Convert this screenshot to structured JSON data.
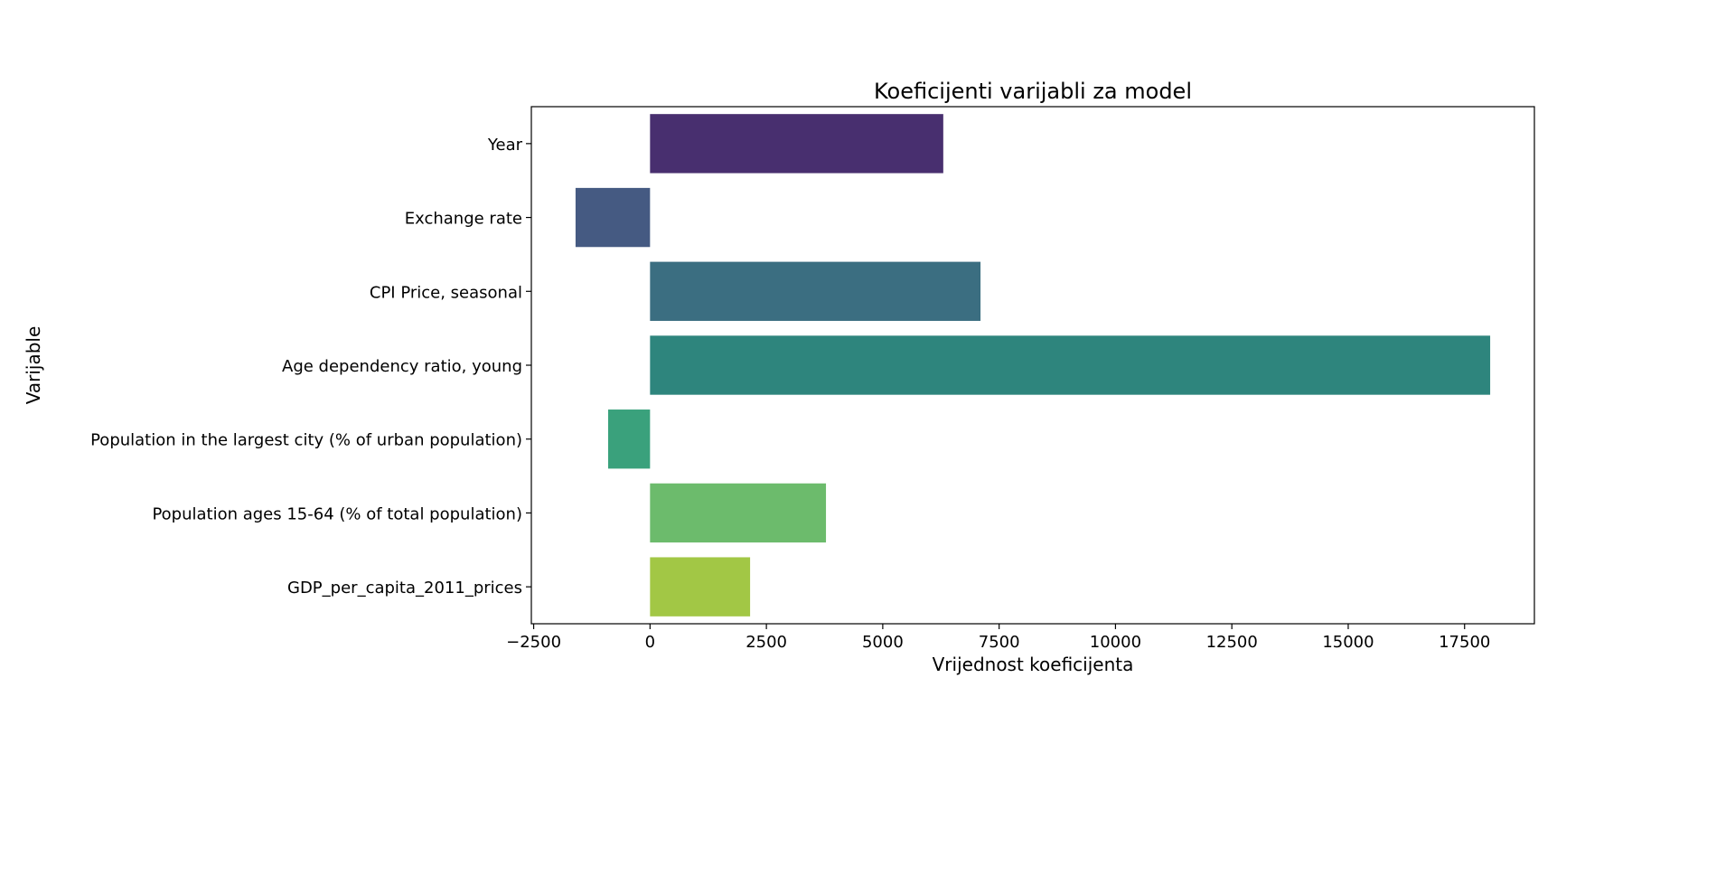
{
  "chart_data": {
    "type": "bar",
    "orientation": "horizontal",
    "title": "Koeficijenti varijabli za model",
    "xlabel": "Vrijednost koeficijenta",
    "ylabel": "Varijable",
    "categories": [
      "Year",
      "Exchange rate",
      "CPI Price, seasonal",
      "Age dependency ratio, young",
      "Population in the largest city (% of urban population)",
      "Population ages 15-64 (% of total population)",
      "GDP_per_capita_2011_prices"
    ],
    "values": [
      6300,
      -1600,
      7100,
      18050,
      -900,
      3780,
      2150
    ],
    "colors": [
      "#482f6f",
      "#455a82",
      "#3b6e81",
      "#2e857d",
      "#3aa17c",
      "#6cbb6c",
      "#a2c745"
    ],
    "xlim": [
      -2550,
      19000
    ],
    "xticks": [
      -2500,
      0,
      2500,
      5000,
      7500,
      10000,
      12500,
      15000,
      17500
    ],
    "xtick_labels": [
      "−2500",
      "0",
      "2500",
      "5000",
      "7500",
      "10000",
      "12500",
      "15000",
      "17500"
    ],
    "grid": false,
    "legend": "none"
  }
}
